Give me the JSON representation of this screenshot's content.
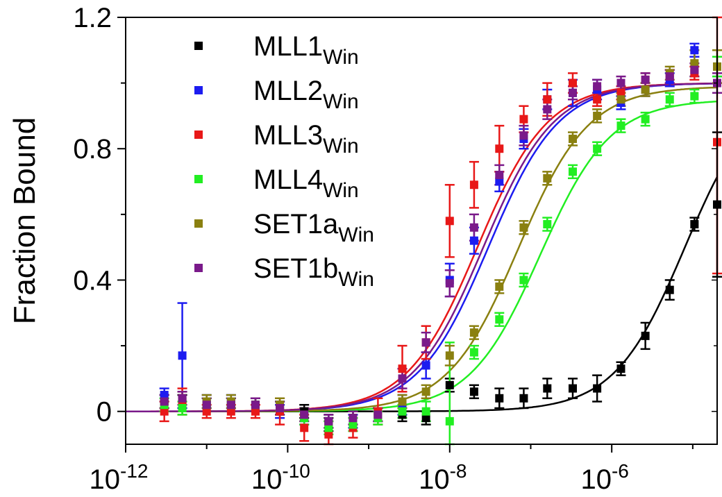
{
  "chart_data": {
    "type": "scatter",
    "title": "",
    "xlabel": "",
    "ylabel": "Fraction Bound",
    "x_scale": "log",
    "xlim": [
      1e-12,
      2e-05
    ],
    "ylim": [
      -0.1,
      1.2
    ],
    "x_ticks": [
      {
        "value": 1e-12,
        "base": "10",
        "exp": "-12"
      },
      {
        "value": 1e-10,
        "base": "10",
        "exp": "-10"
      },
      {
        "value": 1e-08,
        "base": "10",
        "exp": "-8"
      },
      {
        "value": 1e-06,
        "base": "10",
        "exp": "-6"
      }
    ],
    "y_ticks": [
      {
        "value": 0,
        "label": "0"
      },
      {
        "value": 0.4,
        "label": "0.4"
      },
      {
        "value": 0.8,
        "label": "0.8"
      },
      {
        "value": 1.2,
        "label": "1.2"
      }
    ],
    "legend_position": "top-left",
    "grid": false,
    "x": [
      3e-12,
      5e-12,
      1e-11,
      2e-11,
      4e-11,
      8e-11,
      1.6e-10,
      3.2e-10,
      6.4e-10,
      1.3e-09,
      2.6e-09,
      5.1e-09,
      1e-08,
      2e-08,
      4.1e-08,
      8.2e-08,
      1.6e-07,
      3.3e-07,
      6.6e-07,
      1.3e-06,
      2.6e-06,
      5.2e-06,
      1.05e-05,
      2e-05
    ],
    "series": [
      {
        "name": "MLL1",
        "name_sub": "Win",
        "color": "#000000",
        "values": [
          0.03,
          0.03,
          0.02,
          0.02,
          0.02,
          0.01,
          0.0,
          -0.04,
          -0.02,
          -0.01,
          -0.01,
          -0.02,
          0.08,
          0.06,
          0.04,
          0.04,
          0.07,
          0.07,
          0.07,
          0.13,
          0.23,
          0.37,
          0.57,
          0.63
        ],
        "errors": [
          0.02,
          0.02,
          0.02,
          0.02,
          0.02,
          0.02,
          0.02,
          0.02,
          0.02,
          0.02,
          0.02,
          0.02,
          0.02,
          0.02,
          0.03,
          0.03,
          0.03,
          0.03,
          0.04,
          0.02,
          0.04,
          0.03,
          0.02,
          0.22
        ],
        "fit": {
          "bottom": 0.0,
          "top": 1.0,
          "ec50": 8e-06,
          "hill": 1.0
        }
      },
      {
        "name": "MLL2",
        "name_sub": "Win",
        "color": "#1c1cf0",
        "values": [
          0.05,
          0.17,
          0.03,
          0.03,
          0.02,
          0.0,
          -0.02,
          -0.03,
          -0.03,
          -0.01,
          0.02,
          0.14,
          0.4,
          0.52,
          0.7,
          0.83,
          0.95,
          0.97,
          0.98,
          0.94,
          0.98,
          1.01,
          1.1,
          1.05
        ],
        "errors": [
          0.02,
          0.16,
          0.02,
          0.02,
          0.02,
          0.02,
          0.02,
          0.02,
          0.02,
          0.02,
          0.03,
          0.04,
          0.05,
          0.04,
          0.03,
          0.03,
          0.03,
          0.04,
          0.03,
          0.02,
          0.02,
          0.02,
          0.02,
          0.03
        ],
        "fit": {
          "bottom": 0.0,
          "top": 1.0,
          "ec50": 3e-08,
          "hill": 1.0
        }
      },
      {
        "name": "MLL3",
        "name_sub": "Win",
        "color": "#e81818",
        "values": [
          0.0,
          0.03,
          0.0,
          0.0,
          0.0,
          0.0,
          -0.05,
          -0.07,
          -0.05,
          0.0,
          0.13,
          0.21,
          0.58,
          0.69,
          0.8,
          0.89,
          0.95,
          1.0,
          0.95,
          0.97,
          1.01,
          1.02,
          1.03,
          0.82
        ],
        "errors": [
          0.03,
          0.04,
          0.02,
          0.02,
          0.02,
          0.04,
          0.04,
          0.04,
          0.03,
          0.04,
          0.07,
          0.05,
          0.11,
          0.07,
          0.07,
          0.04,
          0.05,
          0.03,
          0.02,
          0.02,
          0.02,
          0.02,
          0.02,
          0.4
        ],
        "fit": {
          "bottom": 0.0,
          "top": 1.0,
          "ec50": 2.2e-08,
          "hill": 1.0
        }
      },
      {
        "name": "MLL4",
        "name_sub": "Win",
        "color": "#22ee22",
        "values": [
          0.02,
          0.01,
          0.02,
          0.02,
          0.02,
          0.01,
          -0.02,
          -0.05,
          -0.04,
          -0.02,
          0.0,
          0.0,
          -0.03,
          0.18,
          0.28,
          0.4,
          0.57,
          0.73,
          0.8,
          0.87,
          0.89,
          0.95,
          0.96,
          1.05
        ],
        "errors": [
          0.02,
          0.02,
          0.02,
          0.02,
          0.02,
          0.02,
          0.02,
          0.02,
          0.02,
          0.02,
          0.02,
          0.03,
          0.24,
          0.02,
          0.02,
          0.02,
          0.02,
          0.02,
          0.02,
          0.02,
          0.02,
          0.02,
          0.02,
          0.03
        ],
        "fit": {
          "bottom": 0.0,
          "top": 0.95,
          "ec50": 1.3e-07,
          "hill": 1.0
        }
      },
      {
        "name": "SET1a",
        "name_sub": "Win",
        "color": "#8a8010",
        "values": [
          0.03,
          0.04,
          0.03,
          0.03,
          0.02,
          0.02,
          -0.01,
          -0.03,
          -0.02,
          -0.01,
          0.03,
          0.06,
          0.17,
          0.24,
          0.38,
          0.56,
          0.71,
          0.83,
          0.9,
          0.95,
          0.98,
          1.03,
          1.06,
          1.05
        ],
        "errors": [
          0.02,
          0.02,
          0.02,
          0.02,
          0.02,
          0.02,
          0.02,
          0.02,
          0.02,
          0.02,
          0.02,
          0.02,
          0.03,
          0.02,
          0.02,
          0.02,
          0.02,
          0.02,
          0.02,
          0.02,
          0.02,
          0.02,
          0.04,
          0.05
        ],
        "fit": {
          "bottom": 0.0,
          "top": 0.99,
          "ec50": 7e-08,
          "hill": 1.0
        }
      },
      {
        "name": "SET1b",
        "name_sub": "Win",
        "color": "#7a1a8a",
        "values": [
          0.03,
          0.04,
          0.02,
          0.02,
          0.02,
          0.01,
          -0.01,
          -0.03,
          -0.02,
          -0.01,
          0.1,
          0.21,
          0.39,
          0.56,
          0.72,
          0.84,
          0.92,
          0.97,
          0.99,
          1.0,
          1.01,
          1.02,
          1.04,
          1.0
        ],
        "errors": [
          0.02,
          0.02,
          0.02,
          0.02,
          0.02,
          0.02,
          0.02,
          0.02,
          0.02,
          0.02,
          0.03,
          0.03,
          0.04,
          0.04,
          0.03,
          0.03,
          0.03,
          0.02,
          0.02,
          0.02,
          0.02,
          0.02,
          0.02,
          0.03
        ],
        "fit": {
          "bottom": 0.0,
          "top": 1.0,
          "ec50": 2.6e-08,
          "hill": 1.0
        }
      }
    ]
  }
}
